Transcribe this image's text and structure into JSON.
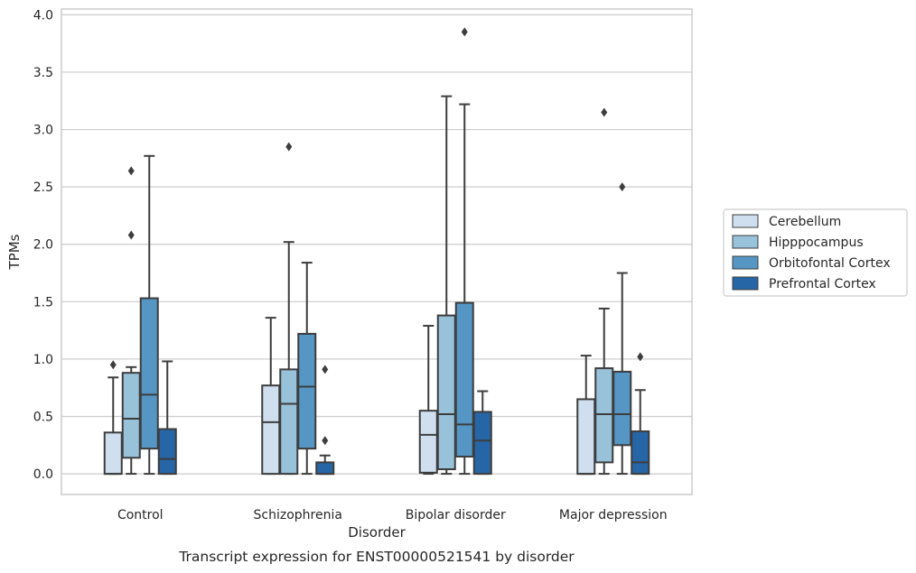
{
  "chart_data": {
    "type": "box",
    "caption": "Transcript expression for ENST00000521541 by disorder",
    "xlabel": "Disorder",
    "ylabel": "TPMs",
    "ylim": [
      -0.18,
      4.05
    ],
    "yticks": [
      "0.0",
      "0.5",
      "1.0",
      "1.5",
      "2.0",
      "2.5",
      "3.0",
      "3.5",
      "4.0"
    ],
    "grid": "horizontal",
    "legend_position": "right",
    "categories": [
      "Control",
      "Schizophrenia",
      "Bipolar disorder",
      "Major depression"
    ],
    "series": [
      {
        "name": "Cerebellum",
        "color": "#cfdff0",
        "boxes": [
          {
            "min": 0.0,
            "q1": 0.0,
            "median": 0.0,
            "q3": 0.36,
            "max": 0.84,
            "outliers": [
              0.95
            ]
          },
          {
            "min": 0.0,
            "q1": 0.0,
            "median": 0.45,
            "q3": 0.77,
            "max": 1.36,
            "outliers": []
          },
          {
            "min": 0.0,
            "q1": 0.01,
            "median": 0.34,
            "q3": 0.55,
            "max": 1.29,
            "outliers": []
          },
          {
            "min": 0.0,
            "q1": 0.0,
            "median": 0.0,
            "q3": 0.65,
            "max": 1.03,
            "outliers": []
          }
        ]
      },
      {
        "name": "Hipppocampus",
        "color": "#98c1da",
        "boxes": [
          {
            "min": 0.0,
            "q1": 0.14,
            "median": 0.48,
            "q3": 0.88,
            "max": 0.93,
            "outliers": [
              2.08,
              2.64
            ]
          },
          {
            "min": 0.0,
            "q1": 0.0,
            "median": 0.61,
            "q3": 0.91,
            "max": 2.02,
            "outliers": [
              2.85
            ]
          },
          {
            "min": 0.0,
            "q1": 0.04,
            "median": 0.52,
            "q3": 1.38,
            "max": 3.29,
            "outliers": []
          },
          {
            "min": 0.0,
            "q1": 0.1,
            "median": 0.52,
            "q3": 0.92,
            "max": 1.44,
            "outliers": [
              3.15
            ]
          }
        ]
      },
      {
        "name": "Orbitofontal Cortex",
        "color": "#5596c5",
        "boxes": [
          {
            "min": 0.0,
            "q1": 0.22,
            "median": 0.69,
            "q3": 1.53,
            "max": 2.77,
            "outliers": []
          },
          {
            "min": 0.0,
            "q1": 0.22,
            "median": 0.76,
            "q3": 1.22,
            "max": 1.84,
            "outliers": []
          },
          {
            "min": 0.0,
            "q1": 0.15,
            "median": 0.43,
            "q3": 1.49,
            "max": 3.22,
            "outliers": [
              3.85
            ]
          },
          {
            "min": 0.0,
            "q1": 0.25,
            "median": 0.52,
            "q3": 0.89,
            "max": 1.75,
            "outliers": [
              2.5
            ]
          }
        ]
      },
      {
        "name": "Prefrontal Cortex",
        "color": "#2666a6",
        "boxes": [
          {
            "min": 0.0,
            "q1": 0.0,
            "median": 0.13,
            "q3": 0.39,
            "max": 0.98,
            "outliers": []
          },
          {
            "min": 0.0,
            "q1": 0.0,
            "median": 0.0,
            "q3": 0.1,
            "max": 0.16,
            "outliers": [
              0.29,
              0.91
            ]
          },
          {
            "min": 0.0,
            "q1": 0.0,
            "median": 0.29,
            "q3": 0.54,
            "max": 0.72,
            "outliers": []
          },
          {
            "min": 0.0,
            "q1": 0.0,
            "median": 0.1,
            "q3": 0.37,
            "max": 0.73,
            "outliers": [
              1.02
            ]
          }
        ]
      }
    ],
    "style": {
      "grid_color": "#cccccc",
      "frame_color": "#cccccc",
      "line_color": "#3d3d3d"
    }
  }
}
